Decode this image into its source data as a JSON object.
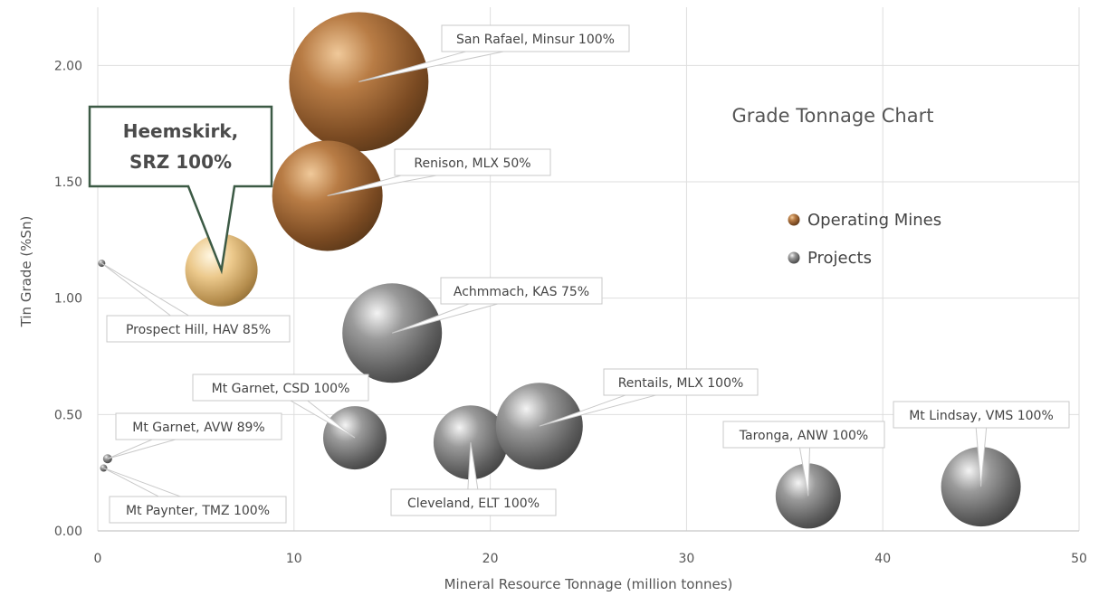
{
  "chart_data": {
    "type": "scatter",
    "title": "Grade Tonnage Chart",
    "xlabel": "Mineral Resource Tonnage (million tonnes)",
    "ylabel": "Tin Grade (%Sn)",
    "xlim": [
      0,
      50
    ],
    "ylim": [
      0,
      2.25
    ],
    "x_ticks": [
      "0",
      "10",
      "20",
      "30",
      "40",
      "50"
    ],
    "y_ticks": [
      "0.00",
      "0.50",
      "1.00",
      "1.50",
      "2.00"
    ],
    "grid": true,
    "legend_position": "right",
    "colors": {
      "operating": "#a86d3a",
      "project": "#8d8d8d",
      "highlight": "#e8c888"
    },
    "series": [
      {
        "name": "Operating Mines",
        "color": "#a86d3a",
        "points": [
          {
            "label": "San Rafael, Minsur 100%",
            "x": 13.3,
            "y": 1.93
          },
          {
            "label": "Renison, MLX 50%",
            "x": 11.7,
            "y": 1.44
          }
        ]
      },
      {
        "name": "Projects",
        "color": "#8d8d8d",
        "points": [
          {
            "label": "Prospect Hill, HAV 85%",
            "x": 0.2,
            "y": 1.15
          },
          {
            "label": "Achmmach, KAS 75%",
            "x": 15.0,
            "y": 0.85
          },
          {
            "label": "Mt Garnet, CSD 100%",
            "x": 13.1,
            "y": 0.4
          },
          {
            "label": "Mt Garnet, AVW 89%",
            "x": 0.5,
            "y": 0.31
          },
          {
            "label": "Mt Paynter, TMZ 100%",
            "x": 0.3,
            "y": 0.27
          },
          {
            "label": "Cleveland, ELT 100%",
            "x": 19.0,
            "y": 0.38
          },
          {
            "label": "Rentails, MLX 100%",
            "x": 22.5,
            "y": 0.45
          },
          {
            "label": "Taronga, ANW 100%",
            "x": 36.2,
            "y": 0.15
          },
          {
            "label": "Mt Lindsay, VMS 100%",
            "x": 45.0,
            "y": 0.19
          }
        ]
      }
    ],
    "highlight": {
      "label": "Heemskirk, SRZ 100%",
      "lines": [
        "Heemskirk,",
        "SRZ 100%"
      ],
      "x": 6.3,
      "y": 1.12
    }
  }
}
